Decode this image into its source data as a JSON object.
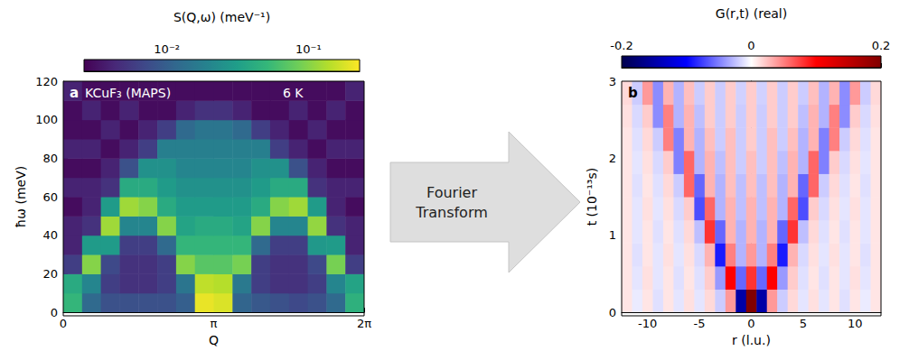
{
  "arrow_label": "Fourier Transform",
  "chart_data": [
    {
      "type": "heatmap",
      "panel": "a",
      "annotations": [
        "KCuF₃ (MAPS)",
        "6 K"
      ],
      "xlabel": "Q",
      "ylabel": "ħω (meV)",
      "xlim": [
        0,
        6.28319
      ],
      "xticks": [
        0,
        {
          "value": 3.14159,
          "label": "π"
        },
        {
          "value": 6.28319,
          "label": "2π"
        }
      ],
      "ylim": [
        0,
        120
      ],
      "yticks": [
        0,
        20,
        40,
        60,
        80,
        100,
        120
      ],
      "x_bins": [
        0,
        0.3927,
        0.7854,
        1.1781,
        1.5708,
        1.9635,
        2.3562,
        2.7489,
        3.14159,
        3.5343,
        3.927,
        4.3197,
        4.7124,
        5.1051,
        5.4978,
        5.8905,
        6.28319
      ],
      "y_bins": [
        0,
        10,
        20,
        30,
        40,
        50,
        60,
        70,
        80,
        90,
        100,
        110,
        120
      ],
      "values": [
        [
          0.05,
          0.012,
          0.008,
          0.008,
          0.008,
          0.008,
          0.01,
          0.2,
          0.18,
          0.011,
          0.009,
          0.008,
          0.007,
          0.008,
          0.012,
          0.045
        ],
        [
          0.04,
          0.02,
          0.006,
          0.005,
          0.005,
          0.006,
          0.015,
          0.15,
          0.14,
          0.016,
          0.006,
          0.005,
          0.005,
          0.006,
          0.02,
          0.035
        ],
        [
          0.006,
          0.1,
          0.007,
          0.005,
          0.005,
          0.006,
          0.1,
          0.07,
          0.07,
          0.09,
          0.006,
          0.005,
          0.005,
          0.007,
          0.09,
          0.006
        ],
        [
          0.004,
          0.03,
          0.03,
          0.006,
          0.006,
          0.012,
          0.05,
          0.05,
          0.05,
          0.05,
          0.012,
          0.006,
          0.006,
          0.028,
          0.03,
          0.004
        ],
        [
          0.004,
          0.005,
          0.12,
          0.02,
          0.02,
          0.1,
          0.035,
          0.04,
          0.04,
          0.035,
          0.1,
          0.02,
          0.02,
          0.11,
          0.005,
          0.004
        ],
        [
          0.003,
          0.004,
          0.03,
          0.12,
          0.1,
          0.04,
          0.03,
          0.03,
          0.03,
          0.03,
          0.04,
          0.1,
          0.12,
          0.03,
          0.004,
          0.003
        ],
        [
          0.004,
          0.004,
          0.005,
          0.04,
          0.04,
          0.03,
          0.025,
          0.025,
          0.025,
          0.025,
          0.03,
          0.04,
          0.04,
          0.005,
          0.004,
          0.004
        ],
        [
          0.003,
          0.003,
          0.004,
          0.008,
          0.025,
          0.025,
          0.02,
          0.02,
          0.02,
          0.02,
          0.025,
          0.025,
          0.008,
          0.004,
          0.003,
          0.003
        ],
        [
          0.004,
          0.004,
          0.003,
          0.004,
          0.006,
          0.018,
          0.018,
          0.018,
          0.018,
          0.018,
          0.018,
          0.006,
          0.004,
          0.003,
          0.004,
          0.004
        ],
        [
          0.003,
          0.003,
          0.004,
          0.003,
          0.004,
          0.006,
          0.012,
          0.015,
          0.015,
          0.012,
          0.006,
          0.004,
          0.003,
          0.004,
          0.003,
          0.003
        ],
        [
          0.003,
          0.004,
          0.003,
          0.004,
          0.003,
          0.003,
          0.004,
          0.005,
          0.005,
          0.004,
          0.003,
          0.003,
          0.004,
          0.003,
          0.004,
          0.003
        ],
        [
          0.004,
          0.003,
          0.003,
          0.003,
          0.003,
          0.003,
          0.003,
          0.003,
          0.003,
          0.003,
          0.003,
          0.003,
          0.003,
          0.003,
          0.003,
          0.004
        ]
      ],
      "colorbar": {
        "label": "S(Q,ω) (meV⁻¹)",
        "log": true,
        "range": [
          0.0026,
          0.23
        ],
        "ticks": [
          {
            "value": 0.01,
            "label": "10⁻²"
          },
          {
            "value": 0.1,
            "label": "10⁻¹"
          }
        ]
      }
    },
    {
      "type": "heatmap",
      "panel": "b",
      "xlabel": "r (l.u.)",
      "ylabel": "t (10⁻¹³s)",
      "xlim": [
        -12.5,
        12.5
      ],
      "xticks": [
        -10,
        -5,
        0,
        5,
        10
      ],
      "ylim": [
        0,
        3
      ],
      "yticks": [
        0,
        1,
        2,
        3
      ],
      "x_bins": [
        -12.5,
        -11.5,
        -10.5,
        -9.5,
        -8.5,
        -7.5,
        -6.5,
        -5.5,
        -4.5,
        -3.5,
        -2.5,
        -1.5,
        -0.5,
        0.5,
        1.5,
        2.5,
        3.5,
        4.5,
        5.5,
        6.5,
        7.5,
        8.5,
        9.5,
        10.5,
        11.5,
        12.5
      ],
      "y_bins": [
        0,
        0.3,
        0.6,
        0.9,
        1.2,
        1.5,
        1.8,
        2.1,
        2.4,
        2.7,
        3.0
      ],
      "values": [
        [
          0.01,
          -0.008,
          0.01,
          -0.012,
          0.01,
          -0.01,
          0.012,
          -0.01,
          0.015,
          -0.02,
          0.04,
          -0.15,
          0.2,
          -0.15,
          0.04,
          -0.02,
          0.015,
          -0.01,
          0.012,
          -0.01,
          0.01,
          -0.012,
          0.01,
          -0.008,
          0.01
        ],
        [
          0.01,
          -0.01,
          0.012,
          -0.01,
          0.01,
          -0.012,
          0.01,
          -0.012,
          0.02,
          -0.04,
          0.1,
          -0.06,
          0.08,
          -0.06,
          0.1,
          -0.04,
          0.02,
          -0.012,
          0.01,
          -0.012,
          0.01,
          -0.01,
          0.012,
          -0.01,
          0.01
        ],
        [
          0.01,
          -0.012,
          0.01,
          -0.01,
          0.012,
          -0.01,
          0.012,
          -0.015,
          0.03,
          -0.09,
          0.05,
          -0.03,
          0.04,
          -0.03,
          0.05,
          -0.09,
          0.03,
          -0.015,
          0.012,
          -0.01,
          0.012,
          -0.01,
          0.01,
          -0.012,
          0.01
        ],
        [
          0.01,
          -0.01,
          0.01,
          -0.012,
          0.01,
          -0.012,
          0.015,
          -0.025,
          0.08,
          -0.06,
          0.03,
          -0.03,
          0.03,
          -0.03,
          0.03,
          -0.06,
          0.08,
          -0.025,
          0.015,
          -0.012,
          0.01,
          -0.012,
          0.01,
          -0.01,
          0.01
        ],
        [
          0.01,
          -0.01,
          0.012,
          -0.01,
          0.012,
          -0.015,
          0.02,
          -0.07,
          0.06,
          -0.03,
          0.03,
          -0.025,
          0.03,
          -0.025,
          0.03,
          -0.03,
          0.06,
          -0.07,
          0.02,
          -0.015,
          0.012,
          -0.01,
          0.012,
          -0.01,
          0.01
        ],
        [
          0.01,
          -0.012,
          0.01,
          -0.012,
          0.015,
          -0.02,
          0.06,
          -0.06,
          0.03,
          -0.03,
          0.025,
          -0.025,
          0.025,
          -0.025,
          0.025,
          -0.03,
          0.03,
          -0.06,
          0.06,
          -0.02,
          0.015,
          -0.012,
          0.01,
          -0.012,
          0.01
        ],
        [
          0.01,
          -0.01,
          0.012,
          -0.015,
          0.02,
          -0.05,
          0.06,
          -0.03,
          0.03,
          -0.025,
          0.025,
          -0.02,
          0.025,
          -0.02,
          0.025,
          -0.025,
          0.03,
          -0.03,
          0.06,
          -0.05,
          0.02,
          -0.015,
          0.012,
          -0.01,
          0.01
        ],
        [
          0.01,
          -0.012,
          0.015,
          -0.02,
          0.05,
          -0.05,
          0.03,
          -0.03,
          0.025,
          -0.02,
          0.025,
          -0.02,
          0.02,
          -0.02,
          0.025,
          -0.02,
          0.025,
          -0.03,
          0.03,
          -0.05,
          0.05,
          -0.02,
          0.015,
          -0.012,
          0.01
        ],
        [
          0.012,
          -0.015,
          0.02,
          -0.045,
          0.05,
          -0.03,
          0.03,
          -0.025,
          0.02,
          -0.02,
          0.02,
          -0.02,
          0.02,
          -0.02,
          0.02,
          -0.02,
          0.02,
          -0.025,
          0.03,
          -0.03,
          0.05,
          -0.045,
          0.02,
          -0.015,
          0.012
        ],
        [
          0.015,
          -0.02,
          0.04,
          -0.045,
          0.03,
          -0.03,
          0.025,
          -0.02,
          0.02,
          -0.02,
          0.02,
          -0.018,
          0.02,
          -0.018,
          0.02,
          -0.02,
          0.02,
          -0.02,
          0.025,
          -0.03,
          0.03,
          -0.045,
          0.04,
          -0.02,
          0.015
        ]
      ],
      "colorbar": {
        "label": "G(r,t) (real)",
        "range": [
          -0.2,
          0.2
        ],
        "ticks": [
          -0.2,
          0,
          0.2
        ]
      }
    }
  ]
}
